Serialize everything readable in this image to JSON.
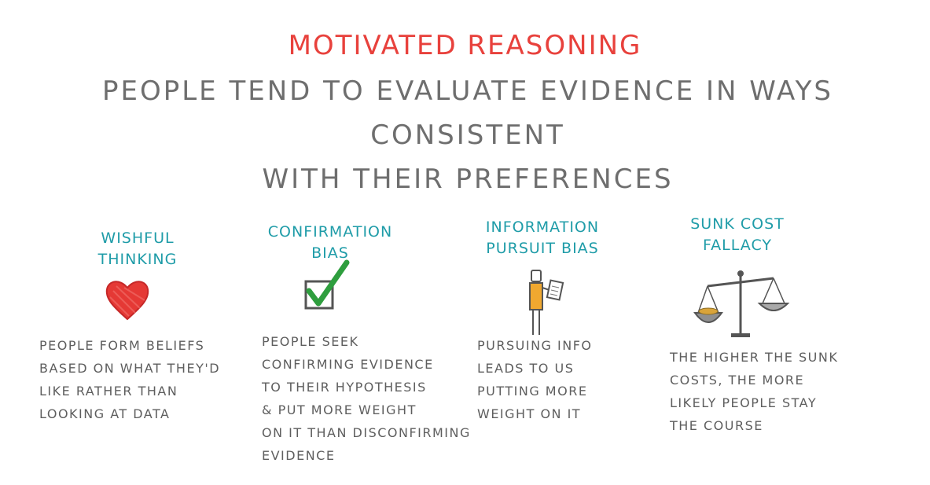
{
  "title": "Motivated Reasoning",
  "subtitle": "People tend to evaluate evidence in ways consistent\nwith their preferences",
  "concepts": [
    {
      "label": "Wishful\nThinking",
      "icon": "heart-icon",
      "description": "People form beliefs\nbased on what they'd\nlike rather than\nlooking at data"
    },
    {
      "label": "Confirmation\nBias",
      "icon": "checkbox-check-icon",
      "description": "People seek\nconfirming evidence\nto their hypothesis\n& put more weight\non it than disconfirming\nevidence"
    },
    {
      "label": "Information\nPursuit Bias",
      "icon": "person-reading-icon",
      "description": "Pursuing info\nleads to us\nputting more\nweight on it"
    },
    {
      "label": "Sunk Cost\nFallacy",
      "icon": "balance-scale-icon",
      "description": "The higher the sunk\ncosts, the more\nlikely people stay\nthe course"
    }
  ],
  "colors": {
    "title": "#e8413c",
    "subtitle": "#6e6e6e",
    "label": "#1f9ca8",
    "heart": "#e53935",
    "check": "#2e9e3e",
    "figure_shirt": "#f0a830"
  }
}
